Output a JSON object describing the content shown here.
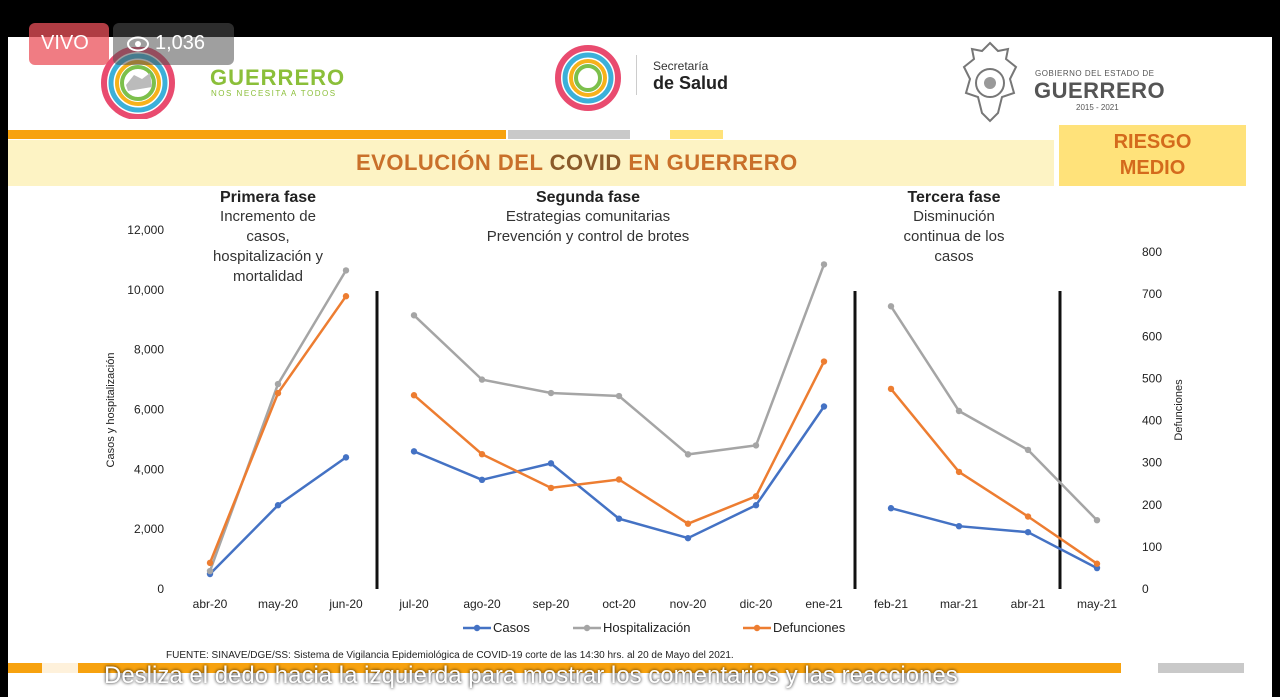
{
  "live": {
    "badge": "VIVO",
    "viewers": "1,036"
  },
  "header": {
    "guerrero_logo": {
      "title": "GUERRERO",
      "tagline": "NOS NECESITA A TODOS"
    },
    "salud_logo": {
      "line1": "Secretaría",
      "line2": "de Salud"
    },
    "gobierno_logo": {
      "line1": "GOBIERNO DEL ESTADO DE",
      "line2": "GUERRERO",
      "line3": "2015 - 2021"
    }
  },
  "slide": {
    "title_part1": "EVOLUCIÓN DEL ",
    "title_part2": "COVID",
    "title_part3": " EN GUERRERO",
    "risk_line1": "RIESGO",
    "risk_line2": "MEDIO"
  },
  "phases": [
    {
      "name": "Primera fase",
      "description": [
        "Incremento de",
        "casos,",
        "hospitalización y",
        "mortalidad"
      ]
    },
    {
      "name": "Segunda fase",
      "description": [
        "Estrategias comunitarias",
        "Prevención y control de brotes"
      ]
    },
    {
      "name": "Tercera fase",
      "description": [
        "Disminución",
        "continua de los",
        "casos"
      ]
    }
  ],
  "chart_data": {
    "type": "line",
    "categories": [
      "abr-20",
      "may-20",
      "jun-20",
      "jul-20",
      "ago-20",
      "sep-20",
      "oct-20",
      "nov-20",
      "dic-20",
      "ene-21",
      "feb-21",
      "mar-21",
      "abr-21",
      "may-21"
    ],
    "segments": [
      [
        0,
        2
      ],
      [
        3,
        9
      ],
      [
        10,
        13
      ]
    ],
    "y_left": {
      "label": "Casos y hospitalización",
      "min": 0,
      "max": 12000,
      "ticks": [
        "0",
        "2,000",
        "4,000",
        "6,000",
        "8,000",
        "10,000",
        "12,000"
      ]
    },
    "y_right": {
      "label": "Defunciones",
      "min": 0,
      "max": 800,
      "ticks": [
        "0",
        "100",
        "200",
        "300",
        "400",
        "500",
        "600",
        "700",
        "800"
      ]
    },
    "series": [
      {
        "name": "Casos",
        "axis": "left",
        "color": "#4472c4",
        "values": [
          500,
          2800,
          4400,
          4600,
          3650,
          4200,
          2350,
          1700,
          2800,
          6100,
          2700,
          2100,
          1900,
          700
        ]
      },
      {
        "name": "Hospitalización",
        "axis": "left",
        "color": "#a5a5a5",
        "values": [
          600,
          6850,
          10650,
          9150,
          7000,
          6550,
          6450,
          4500,
          4800,
          10850,
          9450,
          5950,
          4650,
          2300
        ]
      },
      {
        "name": "Defunciones",
        "axis": "right",
        "color": "#ed7d31",
        "values": [
          62,
          465,
          695,
          460,
          320,
          240,
          260,
          155,
          220,
          540,
          475,
          278,
          172,
          60
        ]
      }
    ],
    "legend_position": "bottom"
  },
  "source": "FUENTE: SINAVE/DGE/SS: Sistema de Vigilancia Epidemiológica de COVID-19 corte de las 14:30 hrs. al 20 de Mayo  del 2021.",
  "caption": "Desliza el dedo hacia la izquierda para mostrar los comentarios y las reacciones"
}
